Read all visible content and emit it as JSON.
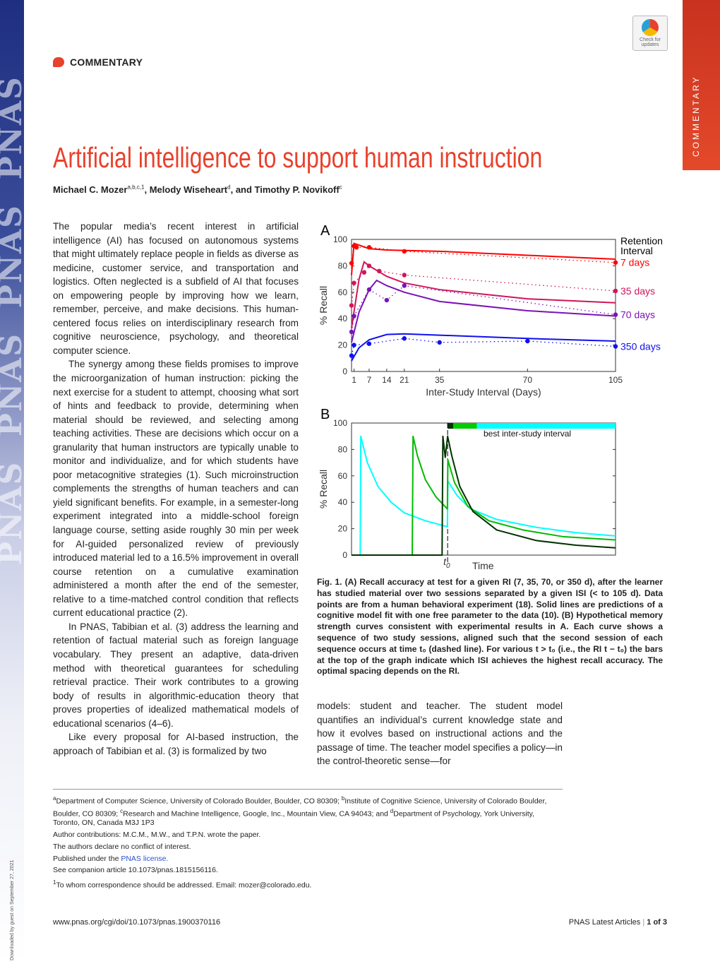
{
  "journal_mark": "PNAS",
  "download_note": "Downloaded by guest on September 27, 2021",
  "section_tab": "COMMENTARY",
  "badge": {
    "label": "Check for updates"
  },
  "kicker": "COMMENTARY",
  "title": "Artificial intelligence to support human instruction",
  "authors": [
    {
      "name": "Michael C. Mozer",
      "sup": "a,b,c,1",
      "sep": ", "
    },
    {
      "name": "Melody Wiseheart",
      "sup": "d",
      "sep": ", and "
    },
    {
      "name": "Timothy P. Novikoff",
      "sup": "c",
      "sep": ""
    }
  ],
  "body_left": [
    "The popular media’s recent interest in artificial intelligence (AI) has focused on autonomous systems that might ultimately replace people in fields as diverse as medicine, customer service, and transportation and logistics. Often neglected is a subfield of AI that focuses on empowering people by improving how we learn, remember, perceive, and make decisions. This human-centered focus relies on interdisciplinary research from cognitive neuroscience, psychology, and theoretical computer science.",
    "The synergy among these fields promises to improve the microorganization of human instruction: picking the next exercise for a student to attempt, choosing what sort of hints and feedback to provide, determining when material should be reviewed, and selecting among teaching activities. These are decisions which occur on a granularity that human instructors are typically unable to monitor and individualize, and for which students have poor metacognitive strategies (1). Such microinstruction complements the strengths of human teachers and can yield significant benefits. For example, in a semester-long experiment integrated into a middle-school foreign language course, setting aside roughly 30 min per week for AI-guided personalized review of previously introduced material led to a 16.5% improvement in overall course retention on a cumulative examination administered a month after the end of the semester, relative to a time-matched control condition that reflects current educational practice (2).",
    "In PNAS, Tabibian et al. (3) address the learning and retention of factual material such as foreign language vocabulary. They present an adaptive, data-driven method with theoretical guarantees for scheduling retrieval practice. Their work contributes to a growing body of results in algorithmic-education theory that proves properties of idealized mathematical models of educational scenarios (4–6).",
    "Like every proposal for AI-based instruction, the approach of Tabibian et al. (3) is formalized by two"
  ],
  "body_right": "models: student and teacher. The student model quantifies an individual’s current knowledge state and how it evolves based on instructional actions and the passage of time. The teacher model specifies a policy—in the control-theoretic sense—for",
  "figure_caption": "Fig. 1. (A) Recall accuracy at test for a given RI (7, 35, 70, or 350 d), after the learner has studied material over two sessions separated by a given ISI (< to 105 d). Data points are from a human behavioral experiment (18). Solid lines are predictions of a cognitive model fit with one free parameter to the data (10). (B) Hypothetical memory strength curves consistent with experimental results in A. Each curve shows a sequence of two study sessions, aligned such that the second session of each sequence occurs at time t₀ (dashed line). For various t > t₀ (i.e., the RI t − t₀) the bars at the top of the graph indicate which ISI achieves the highest recall accuracy. The optimal spacing depends on the RI.",
  "chart_data": [
    {
      "panel": "A",
      "type": "line",
      "xlabel": "Inter-Study Interval (Days)",
      "ylabel": "% Recall",
      "xlim": [
        0,
        105
      ],
      "ylim": [
        0,
        100
      ],
      "xticks": [
        1,
        7,
        14,
        21,
        35,
        70,
        105
      ],
      "yticks": [
        0,
        20,
        40,
        60,
        80,
        100
      ],
      "legend_title": "Retention Interval",
      "legend_placement": "right",
      "series": [
        {
          "name": "7 days",
          "color": "#ff0000",
          "data": [
            [
              0,
              82
            ],
            [
              1,
              95
            ],
            [
              2,
              94
            ],
            [
              7,
              94
            ],
            [
              21,
              91
            ],
            [
              105,
              82.5
            ]
          ],
          "model": [
            [
              0,
              73
            ],
            [
              1,
              97
            ],
            [
              4,
              95
            ],
            [
              7,
              93
            ],
            [
              14,
              92
            ],
            [
              35,
              91
            ],
            [
              70,
              88
            ],
            [
              105,
              85
            ]
          ]
        },
        {
          "name": "35 days",
          "color": "#d1165a",
          "data": [
            [
              0,
              50
            ],
            [
              1,
              67
            ],
            [
              5,
              75
            ],
            [
              7,
              80
            ],
            [
              11,
              76
            ],
            [
              21,
              73
            ],
            [
              105,
              61
            ]
          ],
          "model": [
            [
              0,
              33
            ],
            [
              3,
              70
            ],
            [
              5,
              83
            ],
            [
              7,
              80
            ],
            [
              14,
              72
            ],
            [
              21,
              67
            ],
            [
              35,
              62
            ],
            [
              70,
              55
            ],
            [
              105,
              52
            ]
          ]
        },
        {
          "name": "70 days",
          "color": "#7a13b8",
          "data": [
            [
              0,
              30
            ],
            [
              1,
              42
            ],
            [
              7,
              62
            ],
            [
              14,
              54
            ],
            [
              21,
              65
            ],
            [
              105,
              43
            ]
          ],
          "model": [
            [
              0,
              22
            ],
            [
              3,
              45
            ],
            [
              7,
              62
            ],
            [
              10,
              69
            ],
            [
              14,
              65
            ],
            [
              21,
              60
            ],
            [
              35,
              53
            ],
            [
              70,
              46
            ],
            [
              105,
              42
            ]
          ]
        },
        {
          "name": "350 days",
          "color": "#1010f0",
          "data": [
            [
              0,
              12
            ],
            [
              1,
              20
            ],
            [
              7,
              21
            ],
            [
              21,
              25
            ],
            [
              35,
              22
            ],
            [
              70,
              23
            ],
            [
              105,
              19
            ]
          ],
          "model": [
            [
              0,
              8
            ],
            [
              3,
              18
            ],
            [
              7,
              24
            ],
            [
              14,
              28
            ],
            [
              21,
              28.5
            ],
            [
              35,
              27.5
            ],
            [
              70,
              25
            ],
            [
              105,
              23
            ]
          ]
        }
      ]
    },
    {
      "panel": "B",
      "type": "line",
      "xlabel": "Time",
      "ylabel": "% Recall",
      "ylim": [
        0,
        100
      ],
      "yticks": [
        0,
        20,
        40,
        60,
        80,
        100
      ],
      "t0_label": "t0",
      "t0": 36.4,
      "bar_label": "best inter-study interval",
      "best_bars": [
        {
          "from": 36.4,
          "to": 38.5,
          "color": "#003300"
        },
        {
          "from": 38.5,
          "to": 47.5,
          "color": "#00cc00"
        },
        {
          "from": 47.5,
          "to": 100,
          "color": "#00ffff"
        }
      ],
      "series": [
        {
          "color": "#00ffff",
          "data": [
            [
              0,
              0
            ],
            [
              3.3,
              0
            ],
            [
              3.5,
              90
            ],
            [
              6,
              70
            ],
            [
              10,
              52
            ],
            [
              15,
              40
            ],
            [
              20,
              32
            ],
            [
              28,
              26
            ],
            [
              36.3,
              21.5
            ],
            [
              36.5,
              56
            ],
            [
              40,
              45
            ],
            [
              45,
              35
            ],
            [
              55,
              27
            ],
            [
              70,
              21
            ],
            [
              85,
              17
            ],
            [
              100,
              14.5
            ]
          ]
        },
        {
          "color": "#00bb00",
          "data": [
            [
              0,
              0
            ],
            [
              23,
              0
            ],
            [
              23.3,
              90
            ],
            [
              25,
              75
            ],
            [
              28,
              57
            ],
            [
              32,
              44
            ],
            [
              36.3,
              35
            ],
            [
              36.5,
              72
            ],
            [
              39,
              55
            ],
            [
              44,
              37
            ],
            [
              52,
              26
            ],
            [
              65,
              19
            ],
            [
              80,
              14
            ],
            [
              100,
              11.5
            ]
          ]
        },
        {
          "color": "#003300",
          "data": [
            [
              0,
              0
            ],
            [
              34.3,
              0
            ],
            [
              34.6,
              90
            ],
            [
              35.5,
              74
            ],
            [
              36.4,
              90
            ],
            [
              38,
              75
            ],
            [
              41,
              52
            ],
            [
              46,
              33
            ],
            [
              55,
              19
            ],
            [
              70,
              11
            ],
            [
              85,
              7.5
            ],
            [
              100,
              5.5
            ]
          ]
        }
      ]
    }
  ],
  "footnotes": {
    "affiliations": [
      {
        "sup": "a",
        "text": "Department of Computer Science, University of Colorado Boulder, Boulder, CO 80309; "
      },
      {
        "sup": "b",
        "text": "Institute of Cognitive Science, University of Colorado Boulder, Boulder, CO 80309; "
      },
      {
        "sup": "c",
        "text": "Research and Machine Intelligence, Google, Inc., Mountain View, CA 94043; and "
      },
      {
        "sup": "d",
        "text": "Department of Psychology, York University, Toronto, ON, Canada M3J 1P3"
      }
    ],
    "contributions": "Author contributions: M.C.M., M.W., and T.P.N. wrote the paper.",
    "conflict": "The authors declare no conflict of interest.",
    "license_prefix": "Published under the ",
    "license_link": "PNAS license.",
    "companion": "See companion article 10.1073/pnas.1815156116.",
    "correspondence_sup": "1",
    "correspondence": "To whom correspondence should be addressed. Email: mozer@colorado.edu."
  },
  "footer": {
    "url": "www.pnas.org/cgi/doi/10.1073/pnas.1900370116",
    "journal": "PNAS Latest Articles",
    "sep": " | ",
    "page": "1 of 3"
  }
}
